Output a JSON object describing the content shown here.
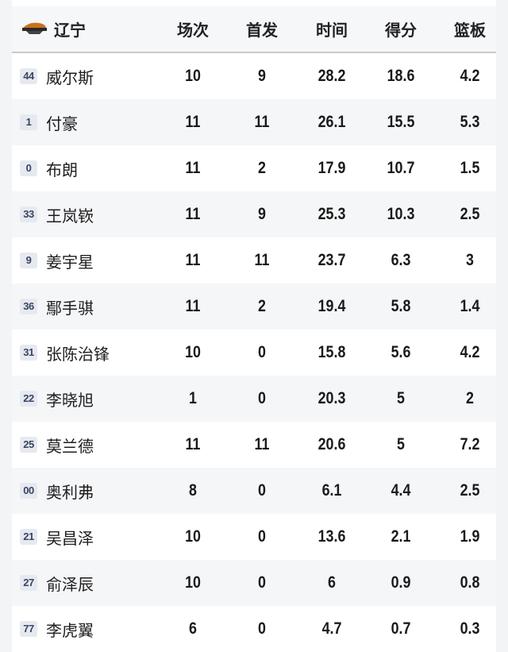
{
  "header": {
    "team": "辽宁",
    "columns": [
      "场次",
      "首发",
      "时间",
      "得分",
      "篮板"
    ]
  },
  "rows": [
    {
      "no": "44",
      "name": "威尔斯",
      "vals": [
        "10",
        "9",
        "28.2",
        "18.6",
        "4.2"
      ]
    },
    {
      "no": "1",
      "name": "付豪",
      "vals": [
        "11",
        "11",
        "26.1",
        "15.5",
        "5.3"
      ]
    },
    {
      "no": "0",
      "name": "布朗",
      "vals": [
        "11",
        "2",
        "17.9",
        "10.7",
        "1.5"
      ]
    },
    {
      "no": "33",
      "name": "王岚嵚",
      "vals": [
        "11",
        "9",
        "25.3",
        "10.3",
        "2.5"
      ]
    },
    {
      "no": "9",
      "name": "姜宇星",
      "vals": [
        "11",
        "11",
        "23.7",
        "6.3",
        "3"
      ]
    },
    {
      "no": "36",
      "name": "鄢手骐",
      "vals": [
        "11",
        "2",
        "19.4",
        "5.8",
        "1.4"
      ]
    },
    {
      "no": "31",
      "name": "张陈治锋",
      "vals": [
        "10",
        "0",
        "15.8",
        "5.6",
        "4.2"
      ]
    },
    {
      "no": "22",
      "name": "李晓旭",
      "vals": [
        "1",
        "0",
        "20.3",
        "5",
        "2"
      ]
    },
    {
      "no": "25",
      "name": "莫兰德",
      "vals": [
        "11",
        "11",
        "20.6",
        "5",
        "7.2"
      ]
    },
    {
      "no": "00",
      "name": "奥利弗",
      "vals": [
        "8",
        "0",
        "6.1",
        "4.4",
        "2.5"
      ]
    },
    {
      "no": "21",
      "name": "吴昌泽",
      "vals": [
        "10",
        "0",
        "13.6",
        "2.1",
        "1.9"
      ]
    },
    {
      "no": "27",
      "name": "俞泽辰",
      "vals": [
        "10",
        "0",
        "6",
        "0.9",
        "0.8"
      ]
    },
    {
      "no": "77",
      "name": "李虎翼",
      "vals": [
        "6",
        "0",
        "4.7",
        "0.7",
        "0.3"
      ]
    }
  ]
}
